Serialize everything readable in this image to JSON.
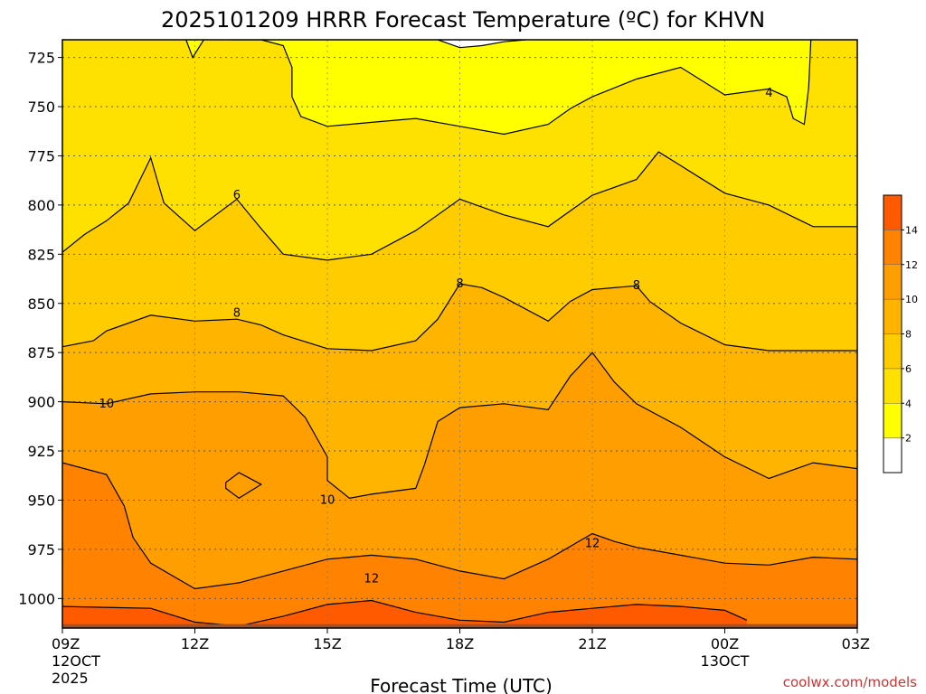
{
  "chart_data": {
    "type": "contour",
    "title": "2025101209 HRRR Forecast Temperature (ºC) for KHVN",
    "xlabel": "Forecast Time (UTC)",
    "ylabel": "",
    "credit": "coolwx.com/models",
    "x_ticks": [
      {
        "hour": 9,
        "label": "09Z",
        "sub1": "12OCT",
        "sub2": "2025"
      },
      {
        "hour": 12,
        "label": "12Z",
        "sub1": "",
        "sub2": ""
      },
      {
        "hour": 15,
        "label": "15Z",
        "sub1": "",
        "sub2": ""
      },
      {
        "hour": 18,
        "label": "18Z",
        "sub1": "",
        "sub2": ""
      },
      {
        "hour": 21,
        "label": "21Z",
        "sub1": "",
        "sub2": ""
      },
      {
        "hour": 24,
        "label": "00Z",
        "sub1": "13OCT",
        "sub2": ""
      },
      {
        "hour": 27,
        "label": "03Z",
        "sub1": "",
        "sub2": ""
      }
    ],
    "xlim_hours": [
      9,
      27
    ],
    "y_axis": "pressure (hPa), decreasing upward",
    "ylim_hpa": [
      1015,
      716
    ],
    "y_ticks": [
      725,
      750,
      775,
      800,
      825,
      850,
      875,
      900,
      925,
      950,
      975,
      1000
    ],
    "colorbar": {
      "levels": [
        0,
        2,
        4,
        6,
        8,
        10,
        12,
        14,
        16
      ],
      "labels": [
        "2",
        "4",
        "6",
        "8",
        "10",
        "12",
        "14"
      ],
      "colors": [
        "#ffffff",
        "#ffff00",
        "#ffe100",
        "#ffcc00",
        "#ffb400",
        "#ff9e00",
        "#ff8200",
        "#ff5a00"
      ]
    },
    "ground_color": "#a0522d",
    "contour_levels": [
      2,
      4,
      6,
      8,
      10,
      12,
      14
    ],
    "contour_labels": [
      {
        "text": "4",
        "hour": 25.0,
        "hpa": 743
      },
      {
        "text": "6",
        "hour": 12.95,
        "hpa": 795
      },
      {
        "text": "8",
        "hour": 12.95,
        "hpa": 855
      },
      {
        "text": "8",
        "hour": 18.0,
        "hpa": 840
      },
      {
        "text": "8",
        "hour": 22.0,
        "hpa": 841
      },
      {
        "text": "10",
        "hour": 10.0,
        "hpa": 901
      },
      {
        "text": "10",
        "hour": 15.0,
        "hpa": 950
      },
      {
        "text": "12",
        "hour": 16.0,
        "hpa": 990
      },
      {
        "text": "12",
        "hour": 21.0,
        "hpa": 972
      }
    ],
    "isotherms": [
      {
        "level": 2,
        "points": [
          [
            17.5,
            716
          ],
          [
            18.0,
            720
          ],
          [
            18.5,
            719
          ],
          [
            19.0,
            717
          ],
          [
            19.5,
            716
          ]
        ]
      },
      {
        "level": 4,
        "points": [
          [
            12.8,
            716
          ],
          [
            13.5,
            716
          ],
          [
            14.0,
            719
          ],
          [
            14.2,
            730
          ],
          [
            14.2,
            745
          ],
          [
            14.4,
            755
          ],
          [
            15.0,
            760
          ],
          [
            16.0,
            758
          ],
          [
            17.0,
            756
          ],
          [
            18.0,
            760
          ],
          [
            19.0,
            764
          ],
          [
            20.0,
            759
          ],
          [
            20.5,
            751
          ],
          [
            21.0,
            745
          ],
          [
            22.0,
            736
          ],
          [
            23.0,
            730
          ],
          [
            24.0,
            744
          ],
          [
            25.0,
            741
          ],
          [
            25.4,
            745
          ],
          [
            25.55,
            756
          ],
          [
            25.8,
            759
          ],
          [
            25.9,
            740
          ],
          [
            25.95,
            716
          ]
        ]
      },
      {
        "level": 4,
        "points": [
          [
            11.8,
            716
          ],
          [
            11.95,
            725
          ],
          [
            12.2,
            716
          ]
        ]
      },
      {
        "level": 6,
        "points": [
          [
            9.0,
            824
          ],
          [
            9.5,
            815
          ],
          [
            10.0,
            808
          ],
          [
            10.5,
            799
          ],
          [
            11.0,
            776
          ],
          [
            11.3,
            799
          ],
          [
            12.0,
            813
          ],
          [
            12.95,
            797
          ],
          [
            13.5,
            812
          ],
          [
            14.0,
            825
          ],
          [
            15.0,
            828
          ],
          [
            16.0,
            825
          ],
          [
            17.0,
            813
          ],
          [
            18.0,
            797
          ],
          [
            19.0,
            805
          ],
          [
            20.0,
            811
          ],
          [
            21.0,
            795
          ],
          [
            22.0,
            787
          ],
          [
            22.5,
            773
          ],
          [
            23.0,
            780
          ],
          [
            24.0,
            794
          ],
          [
            25.0,
            800
          ],
          [
            26.0,
            811
          ],
          [
            27.0,
            811
          ]
        ]
      },
      {
        "level": 8,
        "points": [
          [
            9.0,
            872
          ],
          [
            9.7,
            869
          ],
          [
            10.0,
            864
          ],
          [
            11.0,
            856
          ],
          [
            12.0,
            859
          ],
          [
            12.95,
            858
          ],
          [
            13.5,
            861
          ],
          [
            14.0,
            866
          ],
          [
            15.0,
            873
          ],
          [
            16.0,
            874
          ],
          [
            17.0,
            869
          ],
          [
            17.5,
            858
          ],
          [
            18.0,
            840
          ],
          [
            18.5,
            842
          ],
          [
            19.0,
            847
          ],
          [
            20.0,
            859
          ],
          [
            20.5,
            849
          ],
          [
            21.0,
            843
          ],
          [
            22.0,
            841
          ],
          [
            22.3,
            849
          ],
          [
            23.0,
            860
          ],
          [
            24.0,
            871
          ],
          [
            25.0,
            874
          ],
          [
            26.0,
            874
          ],
          [
            27.0,
            874
          ]
        ]
      },
      {
        "level": 10,
        "points": [
          [
            9.0,
            900
          ],
          [
            10.0,
            901
          ],
          [
            11.0,
            896
          ],
          [
            12.0,
            895
          ],
          [
            13.0,
            895
          ],
          [
            14.0,
            897
          ],
          [
            14.5,
            908
          ],
          [
            15.0,
            928
          ],
          [
            15.0,
            940
          ],
          [
            15.5,
            949
          ],
          [
            16.0,
            947
          ],
          [
            17.0,
            944
          ],
          [
            17.2,
            932
          ],
          [
            17.5,
            910
          ],
          [
            18.0,
            903
          ],
          [
            19.0,
            901
          ],
          [
            20.0,
            904
          ],
          [
            20.5,
            887
          ],
          [
            21.0,
            875
          ],
          [
            21.5,
            890
          ],
          [
            22.0,
            901
          ],
          [
            23.0,
            913
          ],
          [
            24.0,
            928
          ],
          [
            25.0,
            939
          ],
          [
            26.0,
            931
          ],
          [
            27.0,
            934
          ]
        ]
      },
      {
        "level": 10,
        "points": [
          [
            12.7,
            941
          ],
          [
            13.0,
            936
          ],
          [
            13.5,
            942
          ],
          [
            13.0,
            949
          ],
          [
            12.7,
            944
          ],
          [
            12.7,
            941
          ]
        ]
      },
      {
        "level": 12,
        "points": [
          [
            9.0,
            931
          ],
          [
            10.0,
            937
          ],
          [
            10.4,
            953
          ],
          [
            10.6,
            969
          ],
          [
            11.0,
            982
          ],
          [
            12.0,
            995
          ],
          [
            13.0,
            992
          ],
          [
            14.0,
            986
          ],
          [
            15.0,
            980
          ],
          [
            16.0,
            978
          ],
          [
            17.0,
            980
          ],
          [
            18.0,
            986
          ],
          [
            19.0,
            990
          ],
          [
            20.0,
            980
          ],
          [
            21.0,
            967
          ],
          [
            21.5,
            971
          ],
          [
            22.0,
            974
          ],
          [
            23.0,
            978
          ],
          [
            24.0,
            982
          ],
          [
            25.0,
            983
          ],
          [
            26.0,
            979
          ],
          [
            27.0,
            980
          ]
        ]
      },
      {
        "level": 14,
        "points": [
          [
            9.0,
            1004
          ],
          [
            11.0,
            1005
          ],
          [
            12.0,
            1012
          ],
          [
            13.0,
            1014
          ],
          [
            14.0,
            1009
          ],
          [
            15.0,
            1003
          ],
          [
            16.0,
            1001
          ],
          [
            17.0,
            1007
          ],
          [
            18.0,
            1011
          ],
          [
            19.0,
            1012
          ],
          [
            20.0,
            1007
          ],
          [
            21.0,
            1005
          ],
          [
            22.0,
            1003
          ],
          [
            23.0,
            1004
          ],
          [
            24.0,
            1006
          ],
          [
            24.5,
            1011
          ]
        ]
      }
    ]
  }
}
